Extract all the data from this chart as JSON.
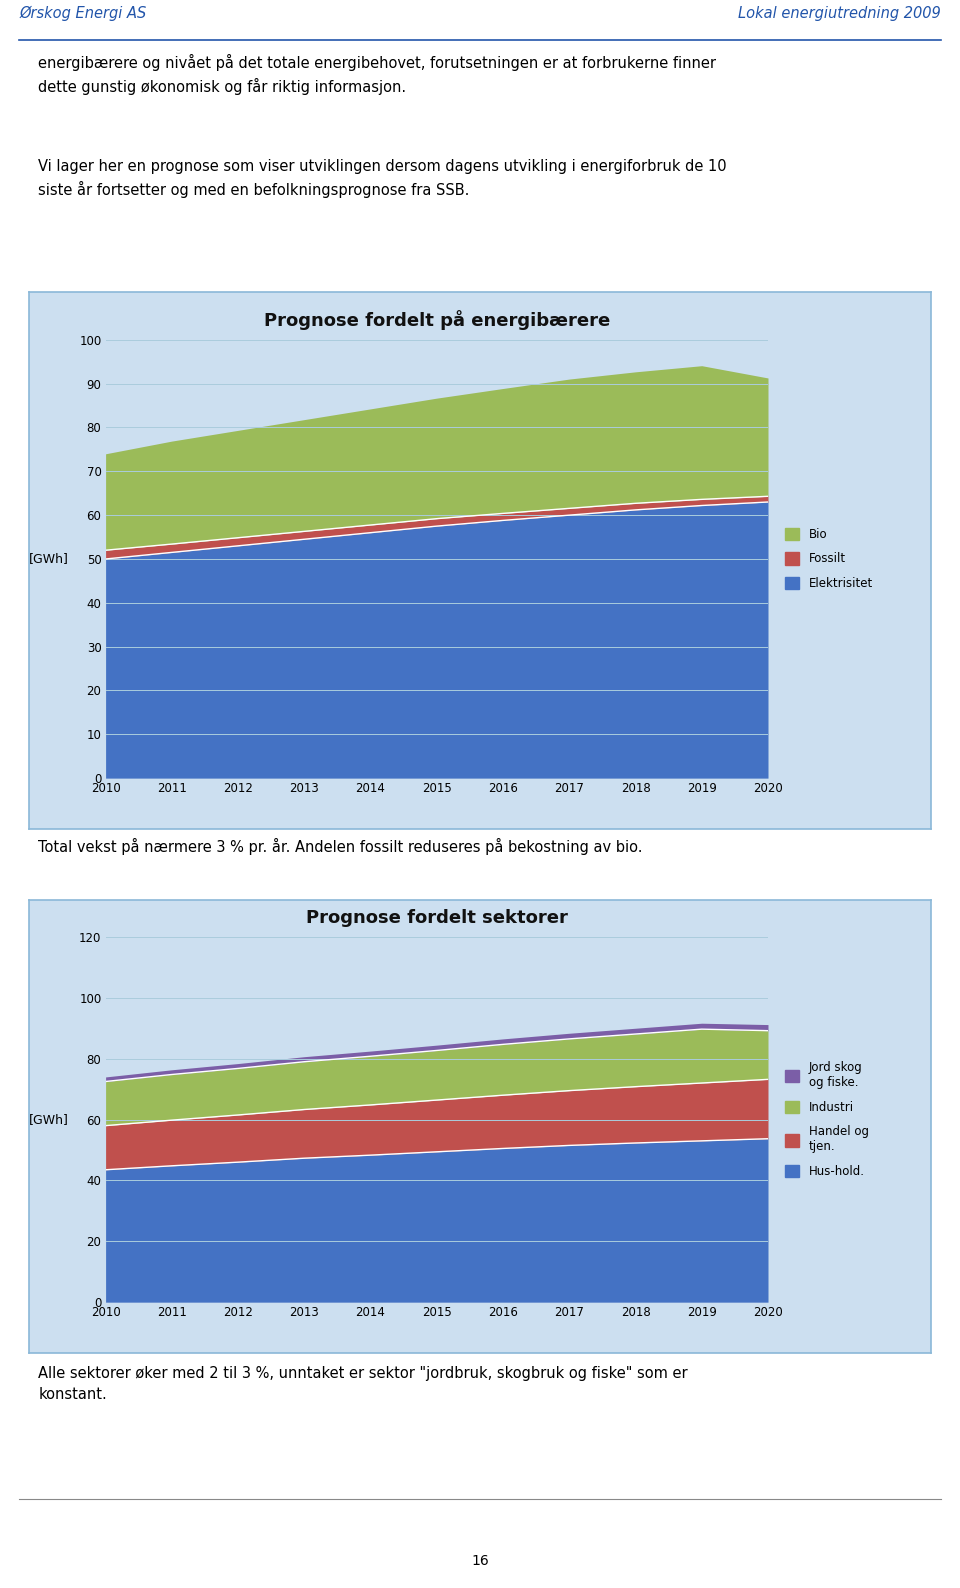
{
  "years": [
    2010,
    2011,
    2012,
    2013,
    2014,
    2015,
    2016,
    2017,
    2018,
    2019,
    2020
  ],
  "chart1_title": "Prognose fordelt på energibærere",
  "chart1_elektrisitet": [
    50.0,
    51.5,
    53.0,
    54.5,
    56.0,
    57.5,
    58.8,
    60.0,
    61.2,
    62.2,
    63.0
  ],
  "chart1_fossilt": [
    2.0,
    1.9,
    1.85,
    1.8,
    1.75,
    1.7,
    1.6,
    1.55,
    1.5,
    1.4,
    1.3
  ],
  "chart1_bio": [
    22.0,
    23.5,
    24.5,
    25.5,
    26.5,
    27.5,
    28.5,
    29.5,
    30.0,
    30.5,
    27.0
  ],
  "chart1_colors": [
    "#4472C4",
    "#C0504D",
    "#9BBB59"
  ],
  "chart1_labels": [
    "Elektrisitet",
    "Fossilt",
    "Bio"
  ],
  "chart1_ylim": [
    0,
    100
  ],
  "chart1_yticks": [
    0,
    10,
    20,
    30,
    40,
    50,
    60,
    70,
    80,
    90,
    100
  ],
  "chart2_title": "Prognose fordelt sektorer",
  "chart2_hushold": [
    43.5,
    44.8,
    46.0,
    47.3,
    48.3,
    49.4,
    50.5,
    51.5,
    52.3,
    53.0,
    53.7
  ],
  "chart2_handel": [
    14.5,
    15.0,
    15.5,
    16.0,
    16.5,
    17.0,
    17.5,
    18.0,
    18.5,
    19.0,
    19.5
  ],
  "chart2_industri": [
    14.5,
    15.0,
    15.3,
    15.7,
    16.0,
    16.3,
    16.7,
    17.0,
    17.3,
    17.7,
    16.0
  ],
  "chart2_jordskog": [
    1.5,
    1.55,
    1.6,
    1.65,
    1.7,
    1.75,
    1.8,
    1.85,
    1.9,
    1.95,
    2.0
  ],
  "chart2_colors": [
    "#4472C4",
    "#C0504D",
    "#9BBB59",
    "#7B5EA7"
  ],
  "chart2_labels": [
    "Hus-hold.",
    "Handel og\ntjen.",
    "Industri",
    "Jord skog\nog fiske."
  ],
  "chart2_ylim": [
    0,
    120
  ],
  "chart2_yticks": [
    0,
    20,
    40,
    60,
    80,
    100,
    120
  ],
  "ylabel": "[GWh]",
  "chart_bg_color": "#CCDFF0",
  "chart_border_color": "#8BB8D8",
  "header_left": "Ørskog Energi AS",
  "header_right": "Lokal energiutredning 2009",
  "header_color": "#2255AA",
  "para1": "energibærere og nivået på det totale energibehovet, forutsetningen er at forbrukerne finner\ndette gunstig økonomisk og får riktig informasjon.",
  "para2": "Vi lager her en prognose som viser utviklingen dersom dagens utvikling i energiforbruk de 10\nsiste år fortsetter og med en befolkningsprognose fra SSB.",
  "para3": "Total vekst på nærmere 3 % pr. år. Andelen fossilt reduseres på bekostning av bio.",
  "para4": "Alle sektorer øker med 2 til 3 %, unntaket er sektor \"jordbruk, skogbruk og fiske\" som er\nkonstant.",
  "footer_num": "16",
  "page_bg": "#FFFFFF",
  "text_color": "#000000",
  "grid_color": "#AACCDD"
}
